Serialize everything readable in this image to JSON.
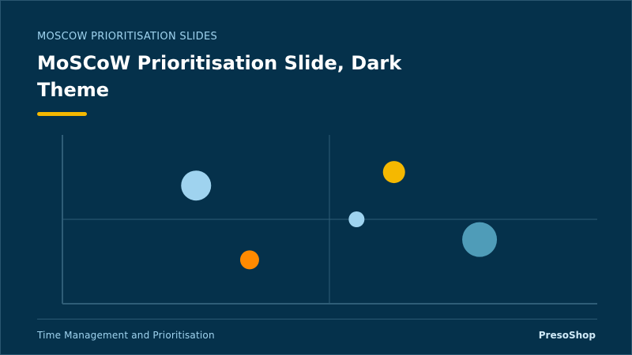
{
  "slide": {
    "kicker": "MOSCOW PRIORITISATION SLIDES",
    "title_line1": "MoSCoW Prioritisation Slide, Dark",
    "title_line2": "Theme",
    "accent_color": "#f5b800"
  },
  "footer": {
    "left": "Time Management and Prioritisation",
    "right": "PresoShop"
  },
  "chart_data": {
    "type": "scatter",
    "title": "",
    "xlabel": "",
    "ylabel": "",
    "xlim": [
      0,
      100
    ],
    "ylim": [
      0,
      100
    ],
    "grid": "quadrant-dividers",
    "series": [
      {
        "x": 25,
        "y": 70,
        "size": 19,
        "color": "#9fd3ef"
      },
      {
        "x": 35,
        "y": 26,
        "size": 12,
        "color": "#ff8a00"
      },
      {
        "x": 62,
        "y": 78,
        "size": 14,
        "color": "#f5b800"
      },
      {
        "x": 55,
        "y": 50,
        "size": 10,
        "color": "#9fd3ef"
      },
      {
        "x": 78,
        "y": 38,
        "size": 22,
        "color": "#4f9cb8"
      }
    ]
  }
}
